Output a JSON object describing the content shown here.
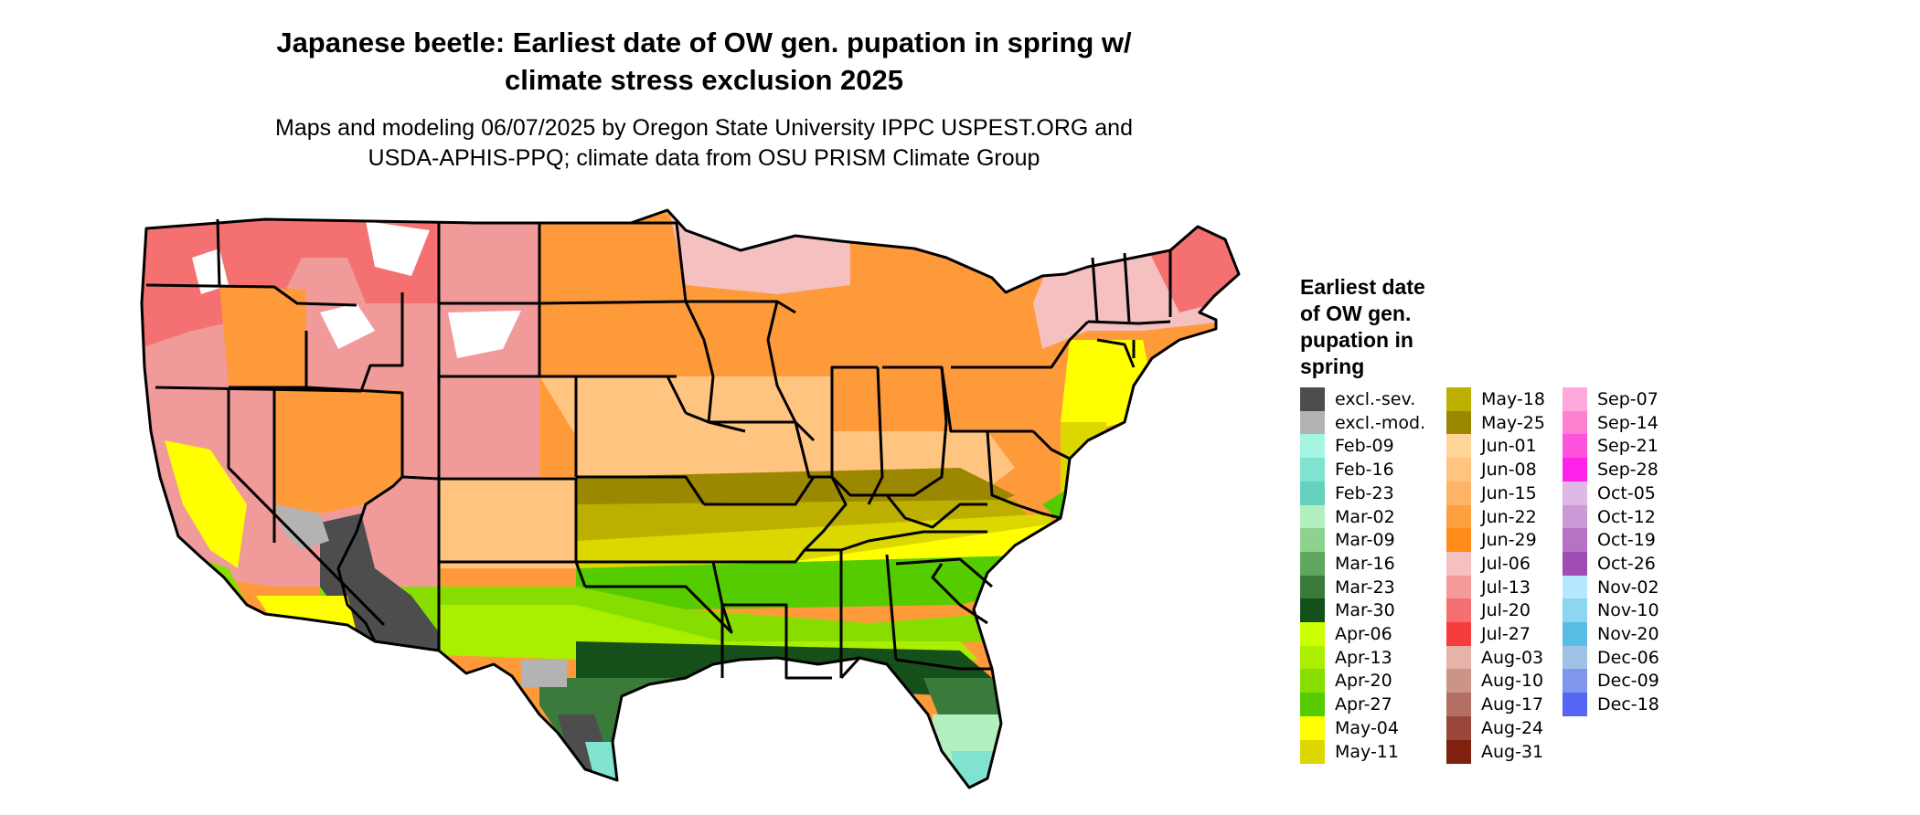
{
  "title": {
    "line1": "Japanese beetle: Earliest date of OW gen. pupation in spring w/",
    "line2": "climate stress exclusion 2025"
  },
  "subtitle": {
    "line1": "Maps and modeling 06/07/2025 by Oregon State University IPPC USPEST.ORG and",
    "line2": "USDA-APHIS-PPQ; climate data from OSU PRISM Climate Group"
  },
  "legend": {
    "title_lines": [
      "Earliest date",
      "of OW gen.",
      "pupation in",
      "spring"
    ],
    "items": [
      {
        "label": "excl.-sev.",
        "color": "#4d4d4d"
      },
      {
        "label": "excl.-mod.",
        "color": "#b3b3b3"
      },
      {
        "label": "Feb-09",
        "color": "#a6f5e3"
      },
      {
        "label": "Feb-16",
        "color": "#7fe3d0"
      },
      {
        "label": "Feb-23",
        "color": "#66d1bf"
      },
      {
        "label": "Mar-02",
        "color": "#b3f0c0"
      },
      {
        "label": "Mar-09",
        "color": "#8fd18f"
      },
      {
        "label": "Mar-16",
        "color": "#5fa65f"
      },
      {
        "label": "Mar-23",
        "color": "#3a7a3a"
      },
      {
        "label": "Mar-30",
        "color": "#15501a"
      },
      {
        "label": "Apr-06",
        "color": "#ccff00"
      },
      {
        "label": "Apr-13",
        "color": "#aaee00"
      },
      {
        "label": "Apr-20",
        "color": "#88dd00"
      },
      {
        "label": "Apr-27",
        "color": "#55cc00"
      },
      {
        "label": "May-04",
        "color": "#ffff00"
      },
      {
        "label": "May-11",
        "color": "#ddd700"
      },
      {
        "label": "May-18",
        "color": "#bcaf00"
      },
      {
        "label": "May-25",
        "color": "#9c8700"
      },
      {
        "label": "Jun-01",
        "color": "#ffd599"
      },
      {
        "label": "Jun-08",
        "color": "#ffc580"
      },
      {
        "label": "Jun-15",
        "color": "#ffb366"
      },
      {
        "label": "Jun-22",
        "color": "#ffa040"
      },
      {
        "label": "Jun-29",
        "color": "#ff8c1a"
      },
      {
        "label": "Jul-06",
        "color": "#f5c0c0"
      },
      {
        "label": "Jul-13",
        "color": "#f59a9a"
      },
      {
        "label": "Jul-20",
        "color": "#f57070"
      },
      {
        "label": "Jul-27",
        "color": "#f53d3d"
      },
      {
        "label": "Aug-03",
        "color": "#e6b3a8"
      },
      {
        "label": "Aug-10",
        "color": "#cc9488"
      },
      {
        "label": "Aug-17",
        "color": "#b36f63"
      },
      {
        "label": "Aug-24",
        "color": "#99473b"
      },
      {
        "label": "Aug-31",
        "color": "#80200f"
      },
      {
        "label": "Sep-07",
        "color": "#ffa8dc"
      },
      {
        "label": "Sep-14",
        "color": "#ff80d0"
      },
      {
        "label": "Sep-21",
        "color": "#ff52dd"
      },
      {
        "label": "Sep-28",
        "color": "#ff22e8"
      },
      {
        "label": "Oct-05",
        "color": "#e0b8e6"
      },
      {
        "label": "Oct-12",
        "color": "#cc99d6"
      },
      {
        "label": "Oct-19",
        "color": "#b573c6"
      },
      {
        "label": "Oct-26",
        "color": "#9f4cb5"
      },
      {
        "label": "Nov-02",
        "color": "#b8e8ff"
      },
      {
        "label": "Nov-10",
        "color": "#8dd6f2"
      },
      {
        "label": "Nov-20",
        "color": "#5abde6"
      },
      {
        "label": "Dec-06",
        "color": "#9ec2e6"
      },
      {
        "label": "Dec-09",
        "color": "#8096ee"
      },
      {
        "label": "Dec-18",
        "color": "#5566f2"
      }
    ]
  },
  "map_colors": {
    "background": "#ffffff",
    "boundary": "#000000",
    "northwest_base": "#f09a9a",
    "northwest_peaks": "#f57070",
    "snow_gaps": "#ffffff",
    "pink_north": "#f5c0c0",
    "orange_main": "#ff9a3a",
    "light_orange": "#ffc580",
    "olive": "#bcaf00",
    "dark_olive": "#9c8700",
    "yellow": "#ffff00",
    "yellow_olive": "#ddd700",
    "bright_green": "#55cc00",
    "lime": "#88dd00",
    "light_lime": "#aaee00",
    "dark_green": "#15501a",
    "mid_green": "#3a7a3a",
    "light_green": "#8fd18f",
    "teal": "#7fe3d0",
    "mint": "#b3f0c0",
    "excl_severe": "#4d4d4d",
    "excl_moderate": "#b3b3b3",
    "maine_red": "#f57070"
  }
}
